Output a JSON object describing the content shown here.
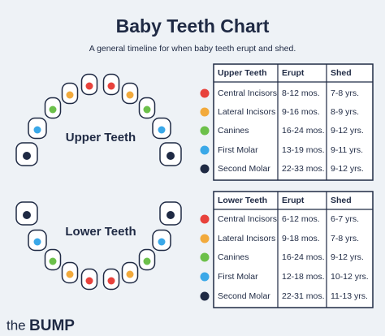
{
  "title": "Baby Teeth Chart",
  "subtitle": "A general timeline for when baby teeth erupt and shed.",
  "upper_label": "Upper Teeth",
  "lower_label": "Lower Teeth",
  "upper_table": {
    "header": [
      "Upper Teeth",
      "Erupt",
      "Shed"
    ],
    "rows": [
      {
        "color": "#e8423c",
        "cells": [
          "Central Incisors",
          "8-12 mos.",
          "7-8 yrs."
        ]
      },
      {
        "color": "#f2aa3c",
        "cells": [
          "Lateral Incisors",
          "9-16 mos.",
          "8-9 yrs."
        ]
      },
      {
        "color": "#6cc04a",
        "cells": [
          "Canines",
          "16-24 mos.",
          "9-12 yrs."
        ]
      },
      {
        "color": "#3aa8e8",
        "cells": [
          "First Molar",
          "13-19 mos.",
          "9-11 yrs."
        ]
      },
      {
        "color": "#1f2a44",
        "cells": [
          "Second Molar",
          "22-33 mos.",
          "9-12 yrs."
        ]
      }
    ]
  },
  "lower_table": {
    "header": [
      "Lower Teeth",
      "Erupt",
      "Shed"
    ],
    "rows": [
      {
        "color": "#e8423c",
        "cells": [
          "Central Incisors",
          "6-12 mos.",
          "6-7 yrs."
        ]
      },
      {
        "color": "#f2aa3c",
        "cells": [
          "Lateral Incisors",
          "9-18 mos.",
          "7-8 yrs."
        ]
      },
      {
        "color": "#6cc04a",
        "cells": [
          "Canines",
          "16-24 mos.",
          "9-12 yrs."
        ]
      },
      {
        "color": "#3aa8e8",
        "cells": [
          "First Molar",
          "12-18 mos.",
          "10-12 yrs."
        ]
      },
      {
        "color": "#1f2a44",
        "cells": [
          "Second Molar",
          "22-31 mos.",
          "11-13 yrs."
        ]
      }
    ]
  },
  "logo": {
    "prefix": "the",
    "brand": "BUMP"
  }
}
